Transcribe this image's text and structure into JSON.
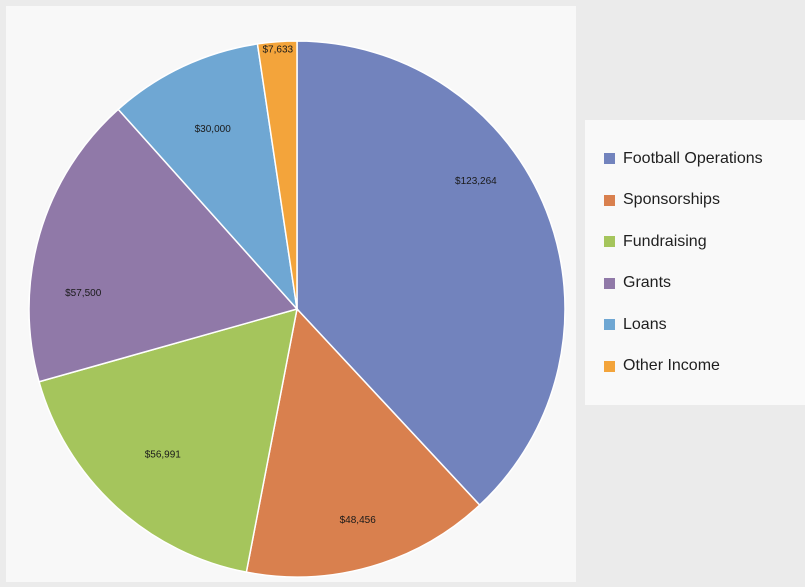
{
  "chart_data": {
    "type": "pie",
    "title": "",
    "categories": [
      "Football Operations",
      "Sponsorships",
      "Fundraising",
      "Grants",
      "Loans",
      "Other Income"
    ],
    "values": [
      123264,
      48456,
      56991,
      57500,
      30000,
      7633
    ],
    "value_labels": [
      "$123,264",
      "$48,456",
      "$56,991",
      "$57,500",
      "$30,000",
      "$7,633"
    ],
    "colors": [
      "#7283bd",
      "#d9804e",
      "#a5c55c",
      "#9079a8",
      "#6fa7d3",
      "#f3a43b"
    ],
    "start": "12 o'clock",
    "direction": "clockwise",
    "legend": "right"
  }
}
